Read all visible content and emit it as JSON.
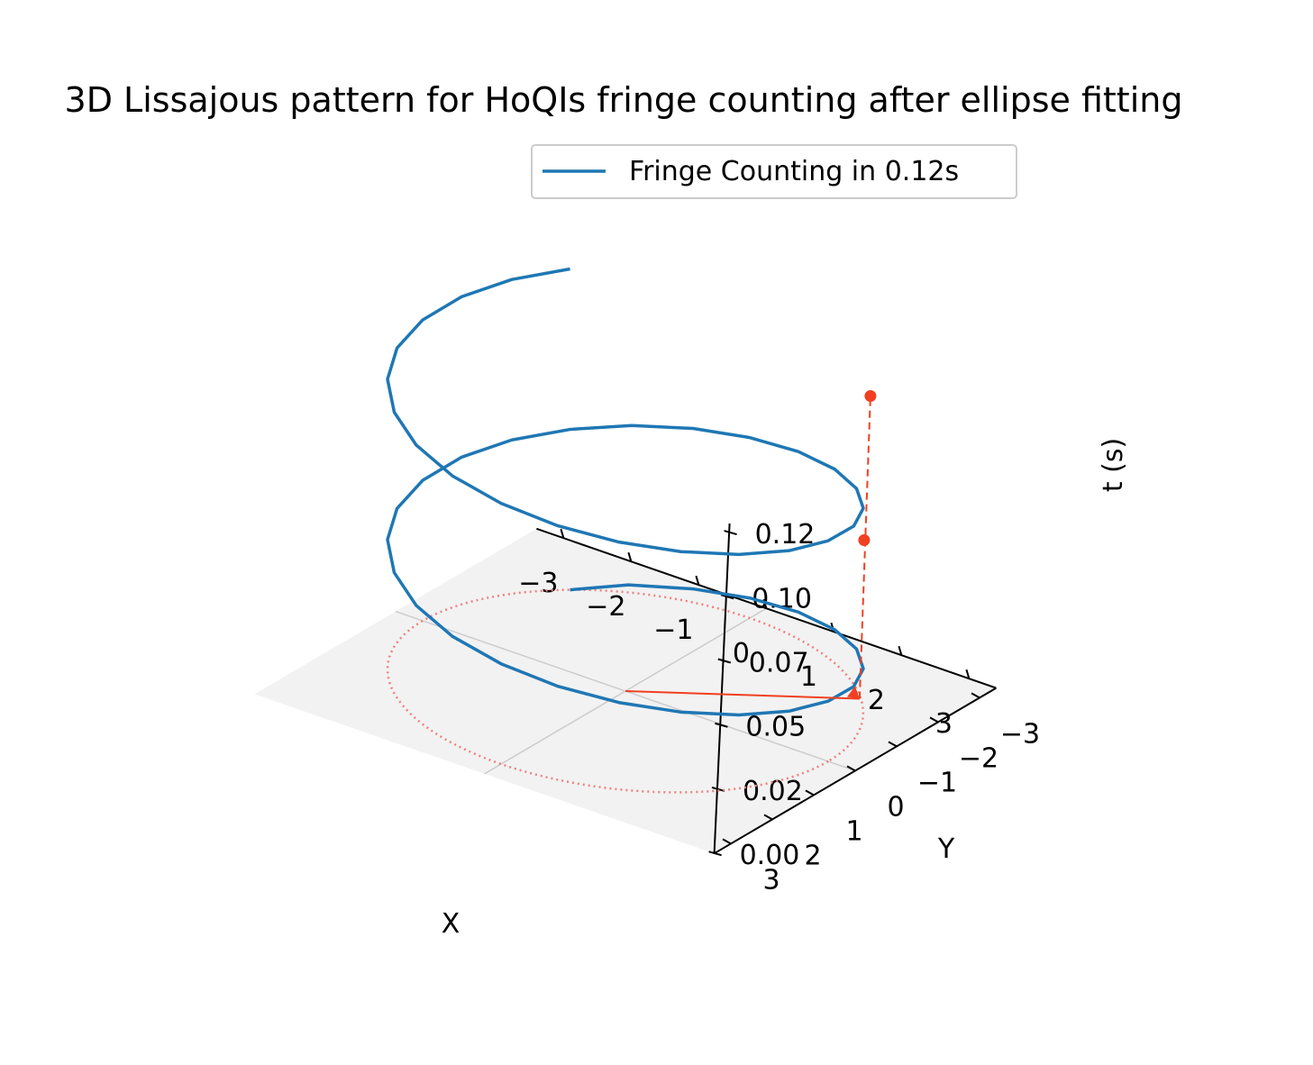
{
  "chart_data": {
    "type": "line",
    "projection": "3d",
    "title": "3D Lissajous pattern for HoQIs fringe counting after ellipse fitting",
    "xlabel": "X",
    "ylabel": "Y",
    "zlabel": "t (s)",
    "xlim": [
      -3.4,
      3.4
    ],
    "ylim": [
      -3.4,
      3.4
    ],
    "zlim": [
      0,
      0.12
    ],
    "x_ticks": [
      -3,
      -2,
      -1,
      0,
      1,
      2,
      3
    ],
    "x_tick_labels": [
      "−3",
      "−2",
      "−1",
      "0",
      "1",
      "2",
      "3"
    ],
    "y_ticks": [
      -3,
      -2,
      -1,
      0,
      1,
      2,
      3
    ],
    "y_tick_labels": [
      "−3",
      "−2",
      "−1",
      "0",
      "1",
      "2",
      "3"
    ],
    "z_ticks": [
      0.0,
      0.025,
      0.05,
      0.075,
      0.1,
      0.125
    ],
    "z_tick_labels": [
      "0.00",
      "0.02",
      "0.05",
      "0.07",
      "0.10",
      "0.12"
    ],
    "legend": {
      "placement": "upper center",
      "entries": [
        "Fringe Counting in 0.12s"
      ]
    },
    "series": [
      {
        "name": "Fringe Counting in 0.12s",
        "color": "#1f77b4",
        "style": "solid",
        "radius": 3.0,
        "turns": 2,
        "angle_start_deg": 225,
        "t_range": [
          0,
          0.12
        ],
        "x": [
          -2.12,
          -1.55,
          -0.78,
          0.0,
          0.78,
          1.5,
          2.12,
          2.6,
          2.9,
          3.0,
          2.9,
          2.6,
          2.12,
          1.5,
          0.78,
          0.0,
          -0.78,
          -1.5,
          -2.12,
          -2.6,
          -2.9,
          -3.0,
          -2.9,
          -2.6,
          -2.12,
          -1.5,
          -0.78,
          0.0,
          0.78,
          1.5,
          2.12,
          2.6,
          2.9,
          3.0,
          2.9,
          2.6,
          2.12,
          1.5,
          0.78,
          0.0,
          -0.78,
          -1.5,
          -2.12,
          -2.6,
          -2.9,
          -3.0,
          -2.9,
          -2.6,
          -2.12
        ],
        "y": [
          -2.12,
          -2.6,
          -2.9,
          -3.0,
          -2.9,
          -2.6,
          -2.12,
          -1.5,
          -0.78,
          0.0,
          0.78,
          1.5,
          2.12,
          2.6,
          2.9,
          3.0,
          2.9,
          2.6,
          2.12,
          1.5,
          0.78,
          0.0,
          -0.78,
          -1.5,
          -2.12,
          -2.6,
          -2.9,
          -3.0,
          -2.9,
          -2.6,
          -2.12,
          -1.5,
          -0.78,
          0.0,
          0.78,
          1.5,
          2.12,
          2.6,
          2.9,
          3.0,
          2.9,
          2.6,
          2.12,
          1.5,
          0.78,
          0.0,
          -0.78,
          -1.5,
          -2.12
        ],
        "t": [
          0.0,
          0.0025,
          0.005,
          0.0075,
          0.01,
          0.0125,
          0.015,
          0.0175,
          0.02,
          0.0225,
          0.025,
          0.0275,
          0.03,
          0.0325,
          0.035,
          0.0375,
          0.04,
          0.0425,
          0.045,
          0.0475,
          0.05,
          0.0525,
          0.055,
          0.0575,
          0.06,
          0.0625,
          0.065,
          0.0675,
          0.07,
          0.0725,
          0.075,
          0.0775,
          0.08,
          0.0825,
          0.085,
          0.0875,
          0.09,
          0.0925,
          0.095,
          0.0975,
          0.1,
          0.1025,
          0.105,
          0.1075,
          0.11,
          0.1125,
          0.115,
          0.1175,
          0.12
        ]
      },
      {
        "name": "",
        "color": "#f08080",
        "style": "dotted",
        "kind": "projected circle at t = 0",
        "radius": 3.0,
        "t": 0.0
      }
    ],
    "annotations": [
      {
        "kind": "arrow",
        "color": "#f04020",
        "from": [
          0,
          0,
          0
        ],
        "to": [
          2.3,
          -1.9,
          0
        ]
      },
      {
        "kind": "marker",
        "color": "#f04020",
        "x": 2.3,
        "y": -1.9,
        "t": 0.0
      }
    ],
    "background_plane": {
      "color": "#f2f2f2",
      "plane": "t = 0"
    },
    "grid_lines_on_plane": true
  }
}
